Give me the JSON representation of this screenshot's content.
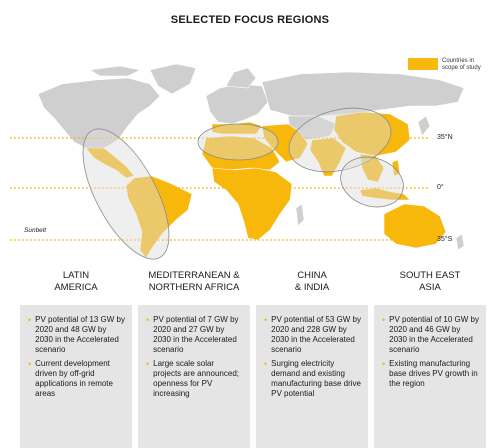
{
  "title": "SELECTED FOCUS REGIONS",
  "legend": {
    "label": "Countries in scope of study",
    "color": "#f7b80b"
  },
  "map": {
    "lines": [
      {
        "label": "35°N"
      },
      {
        "label": "0°"
      },
      {
        "label": "35°S"
      }
    ],
    "region_label": "Sunbelt",
    "highlight_color": "#f7b80b",
    "land_color": "#cfcfcf"
  },
  "regions": [
    {
      "title_line1": "LATIN",
      "title_line2": "AMERICA",
      "bullets": [
        "PV potential of 13 GW by 2020 and 48 GW by 2030 in the Accelerated scenario",
        "Current development driven by off-grid applications in remote areas"
      ]
    },
    {
      "title_line1": "MEDITERRANEAN &",
      "title_line2": "NORTHERN AFRICA",
      "bullets": [
        "PV potential of 7 GW by 2020 and 27 GW by 2030 in the Accelerated scenario",
        "Large scale solar projects are announced; openness for PV increasing"
      ]
    },
    {
      "title_line1": "CHINA",
      "title_line2": "& INDIA",
      "bullets": [
        "PV potential of 53 GW by 2020 and 228 GW by 2030 in the Accelerated scenario",
        "Surging electricity demand and existing manufacturing base drive PV potential"
      ]
    },
    {
      "title_line1": "SOUTH EAST",
      "title_line2": "ASIA",
      "bullets": [
        "PV potential of 10 GW by 2020 and 46 GW by 2030 in the Accelerated scenario",
        "Existing manufacturing base drives PV growth in the region"
      ]
    }
  ]
}
